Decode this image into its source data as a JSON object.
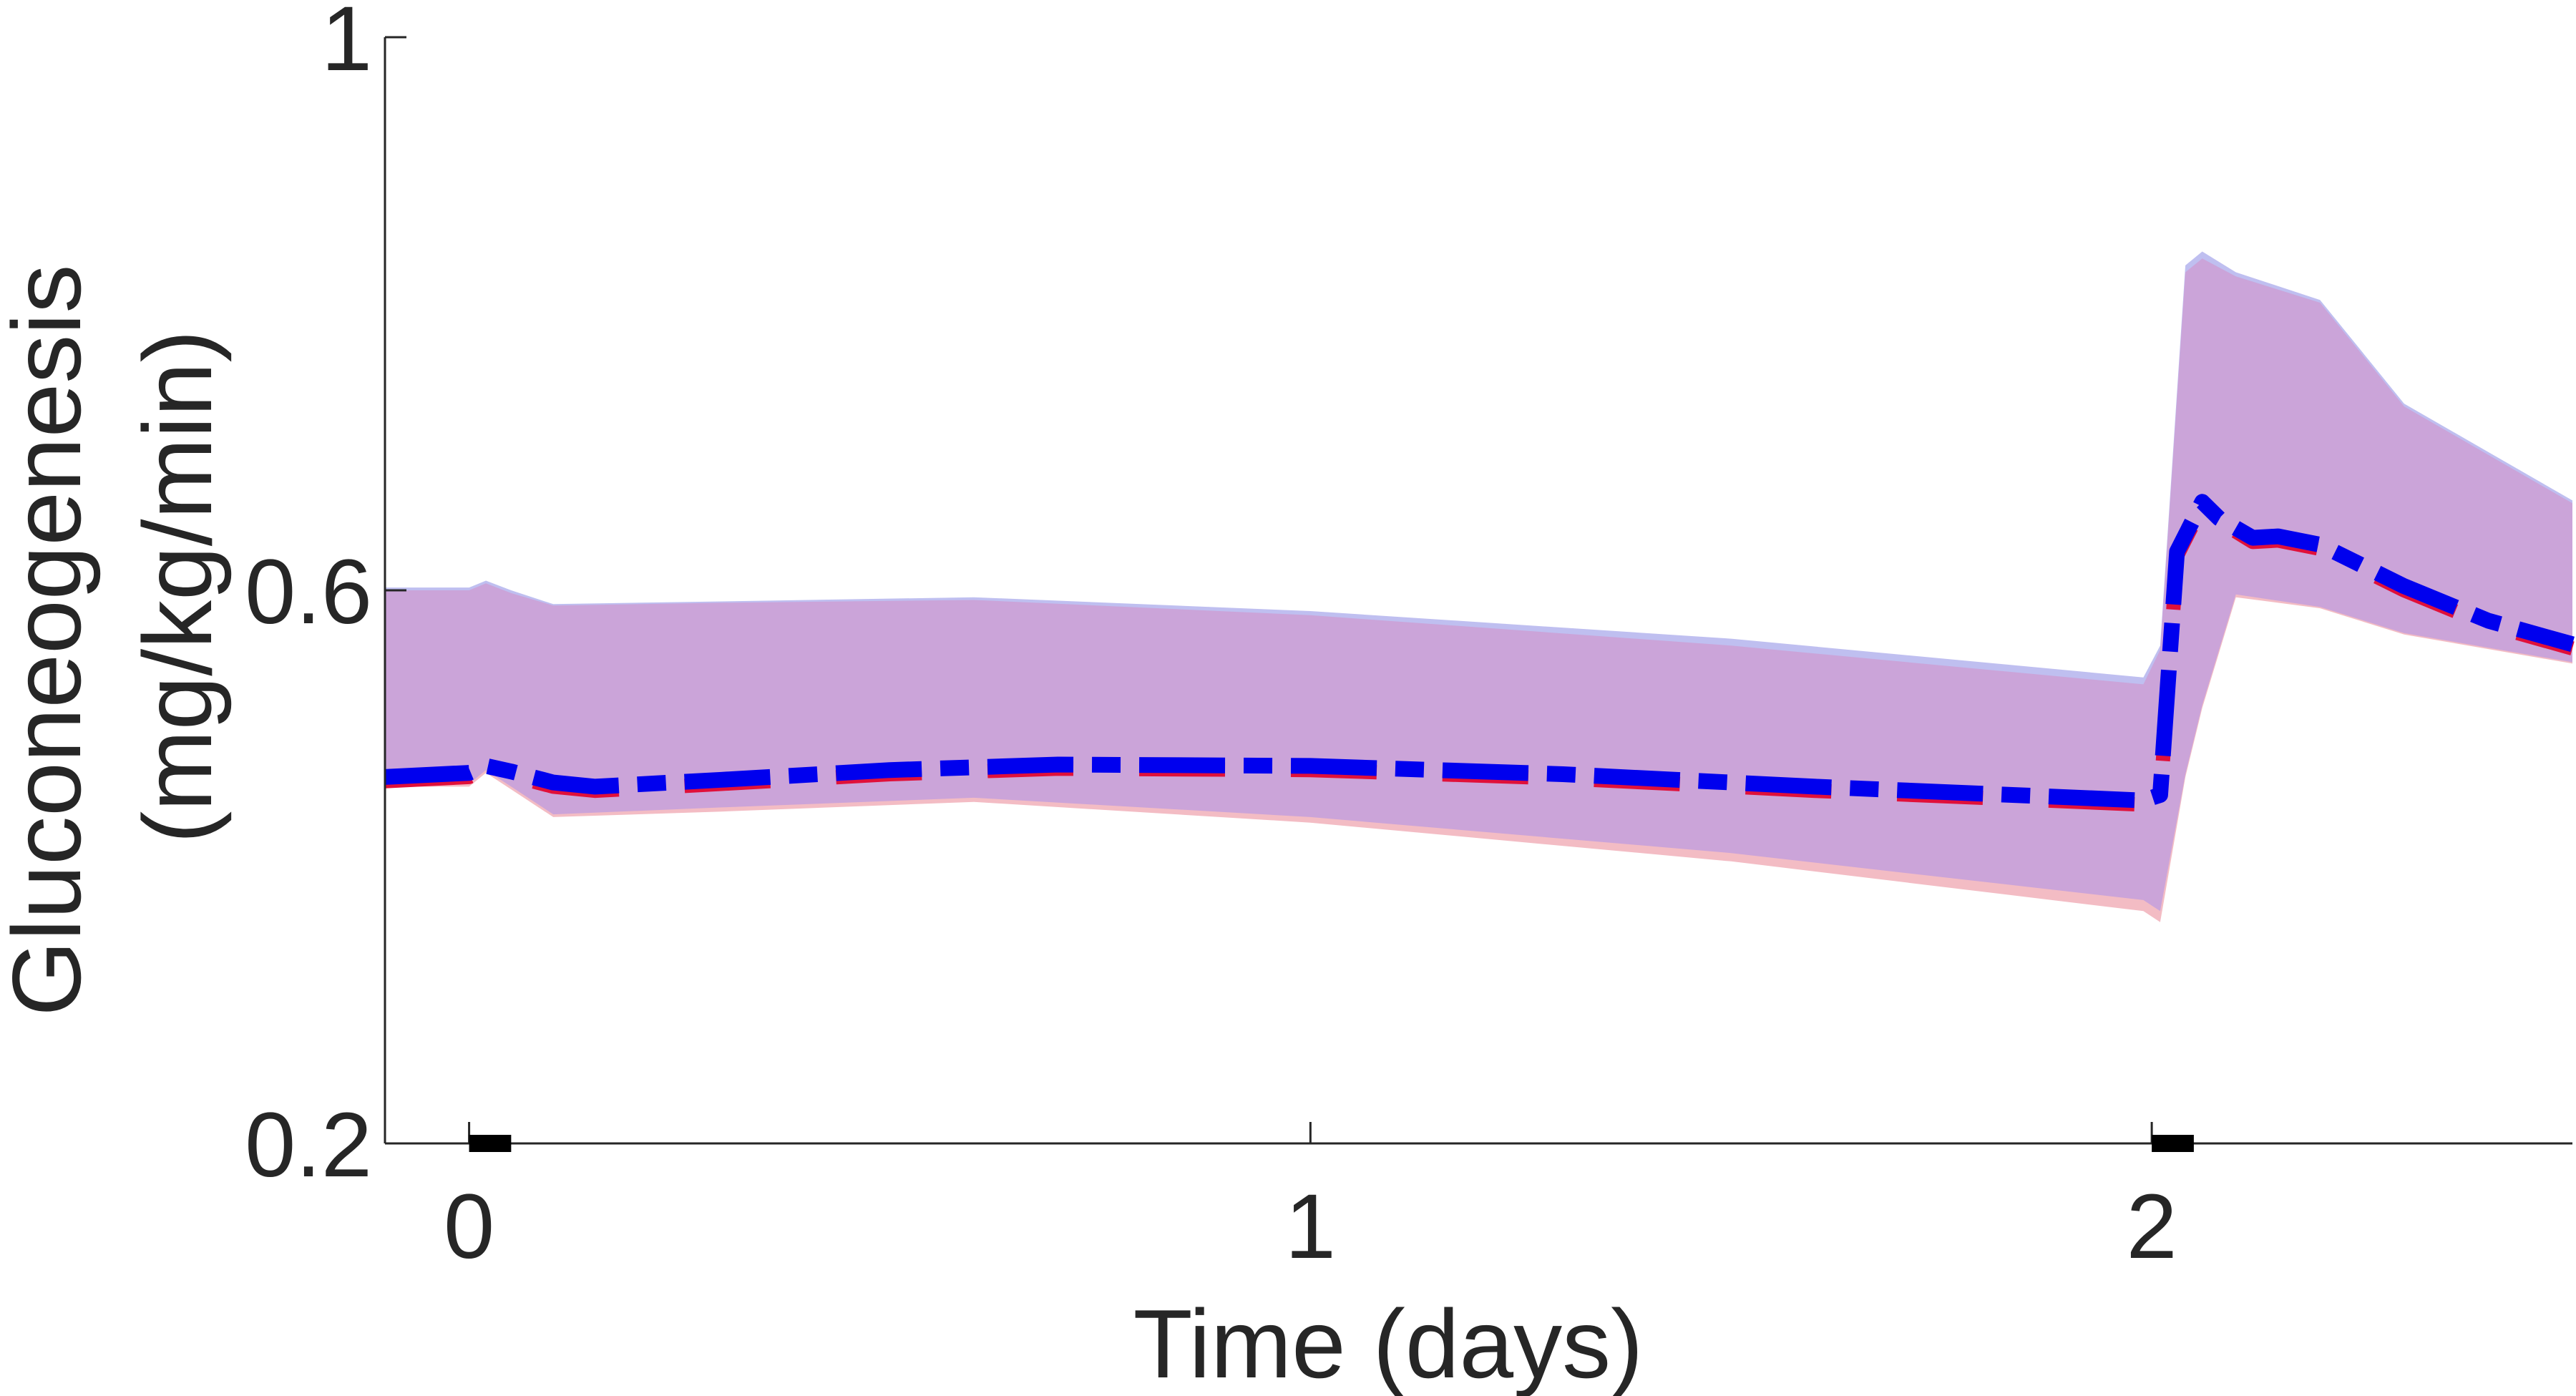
{
  "chart_data": {
    "type": "area",
    "xlabel": "Time (days)",
    "ylabel_lines": [
      "Gluconeogenesis",
      "(mg/kg/min)"
    ],
    "xlim": [
      -0.1,
      2.5
    ],
    "ylim": [
      0.2,
      1.0
    ],
    "x_ticks": [
      0,
      1,
      2
    ],
    "x_tick_labels": [
      "0",
      "1",
      "2"
    ],
    "y_ticks": [
      0.2,
      0.6,
      1.0
    ],
    "y_tick_labels": [
      "0.2",
      "0.6",
      "1"
    ],
    "grid": false,
    "legend": "none",
    "meal_markers": [
      {
        "x_start": 0.0,
        "x_end": 0.05
      },
      {
        "x_start": 2.0,
        "x_end": 2.05
      }
    ],
    "series": [
      {
        "style": "band",
        "color": "#bfbff0",
        "x": [
          -0.1,
          0.0,
          0.02,
          0.05,
          0.1,
          0.3,
          0.6,
          1.0,
          1.5,
          1.99,
          2.01,
          2.04,
          2.06,
          2.1,
          2.2,
          2.3,
          2.5
        ],
        "upper": [
          0.602,
          0.602,
          0.607,
          0.6,
          0.59,
          0.592,
          0.595,
          0.585,
          0.565,
          0.537,
          0.56,
          0.835,
          0.845,
          0.83,
          0.81,
          0.735,
          0.665
        ],
        "lower": [
          0.462,
          0.462,
          0.472,
          0.46,
          0.44,
          0.445,
          0.452,
          0.44,
          0.415,
          0.385,
          0.375,
          0.47,
          0.52,
          0.6,
          0.59,
          0.57,
          0.55
        ]
      },
      {
        "style": "band",
        "color": "#f3bcc4",
        "x": [
          -0.1,
          0.0,
          0.02,
          0.05,
          0.1,
          0.3,
          0.6,
          1.0,
          1.5,
          1.99,
          2.01,
          2.04,
          2.06,
          2.1,
          2.2,
          2.3,
          2.5
        ],
        "upper": [
          0.598,
          0.598,
          0.604,
          0.597,
          0.588,
          0.59,
          0.592,
          0.58,
          0.556,
          0.528,
          0.555,
          0.828,
          0.838,
          0.825,
          0.806,
          0.732,
          0.662
        ],
        "lower": [
          0.458,
          0.458,
          0.468,
          0.456,
          0.436,
          0.44,
          0.447,
          0.432,
          0.404,
          0.368,
          0.36,
          0.465,
          0.515,
          0.595,
          0.587,
          0.568,
          0.547
        ]
      },
      {
        "style": "band",
        "color": "#cba4d9",
        "x": [
          -0.1,
          0.0,
          0.02,
          0.05,
          0.1,
          0.3,
          0.6,
          1.0,
          1.5,
          1.99,
          2.01,
          2.04,
          2.06,
          2.1,
          2.2,
          2.3,
          2.5
        ],
        "upper": [
          0.6,
          0.6,
          0.605,
          0.598,
          0.589,
          0.591,
          0.593,
          0.582,
          0.56,
          0.532,
          0.557,
          0.83,
          0.84,
          0.827,
          0.808,
          0.733,
          0.663
        ],
        "lower": [
          0.46,
          0.46,
          0.47,
          0.458,
          0.438,
          0.443,
          0.45,
          0.436,
          0.41,
          0.376,
          0.368,
          0.467,
          0.517,
          0.597,
          0.588,
          0.569,
          0.548
        ]
      },
      {
        "style": "line",
        "color": "#e0103a",
        "dash": "dashed",
        "x": [
          -0.1,
          0.0,
          0.02,
          0.05,
          0.1,
          0.15,
          0.3,
          0.5,
          0.7,
          1.0,
          1.3,
          1.6,
          1.99,
          2.01,
          2.03,
          2.06,
          2.08,
          2.12,
          2.15,
          2.2,
          2.3,
          2.4,
          2.5
        ],
        "y": [
          0.462,
          0.465,
          0.47,
          0.466,
          0.458,
          0.455,
          0.46,
          0.467,
          0.471,
          0.47,
          0.464,
          0.455,
          0.445,
          0.448,
          0.625,
          0.661,
          0.65,
          0.635,
          0.636,
          0.63,
          0.6,
          0.575,
          0.558
        ]
      },
      {
        "style": "line",
        "color": "#0000ee",
        "dash": "dash-dot",
        "x": [
          -0.1,
          0.0,
          0.02,
          0.05,
          0.1,
          0.15,
          0.3,
          0.5,
          0.7,
          1.0,
          1.3,
          1.6,
          1.99,
          2.01,
          2.03,
          2.06,
          2.08,
          2.12,
          2.15,
          2.2,
          2.3,
          2.4,
          2.5
        ],
        "y": [
          0.465,
          0.468,
          0.473,
          0.469,
          0.461,
          0.458,
          0.463,
          0.47,
          0.474,
          0.473,
          0.467,
          0.458,
          0.448,
          0.452,
          0.628,
          0.664,
          0.652,
          0.638,
          0.639,
          0.633,
          0.603,
          0.578,
          0.561
        ]
      }
    ]
  }
}
